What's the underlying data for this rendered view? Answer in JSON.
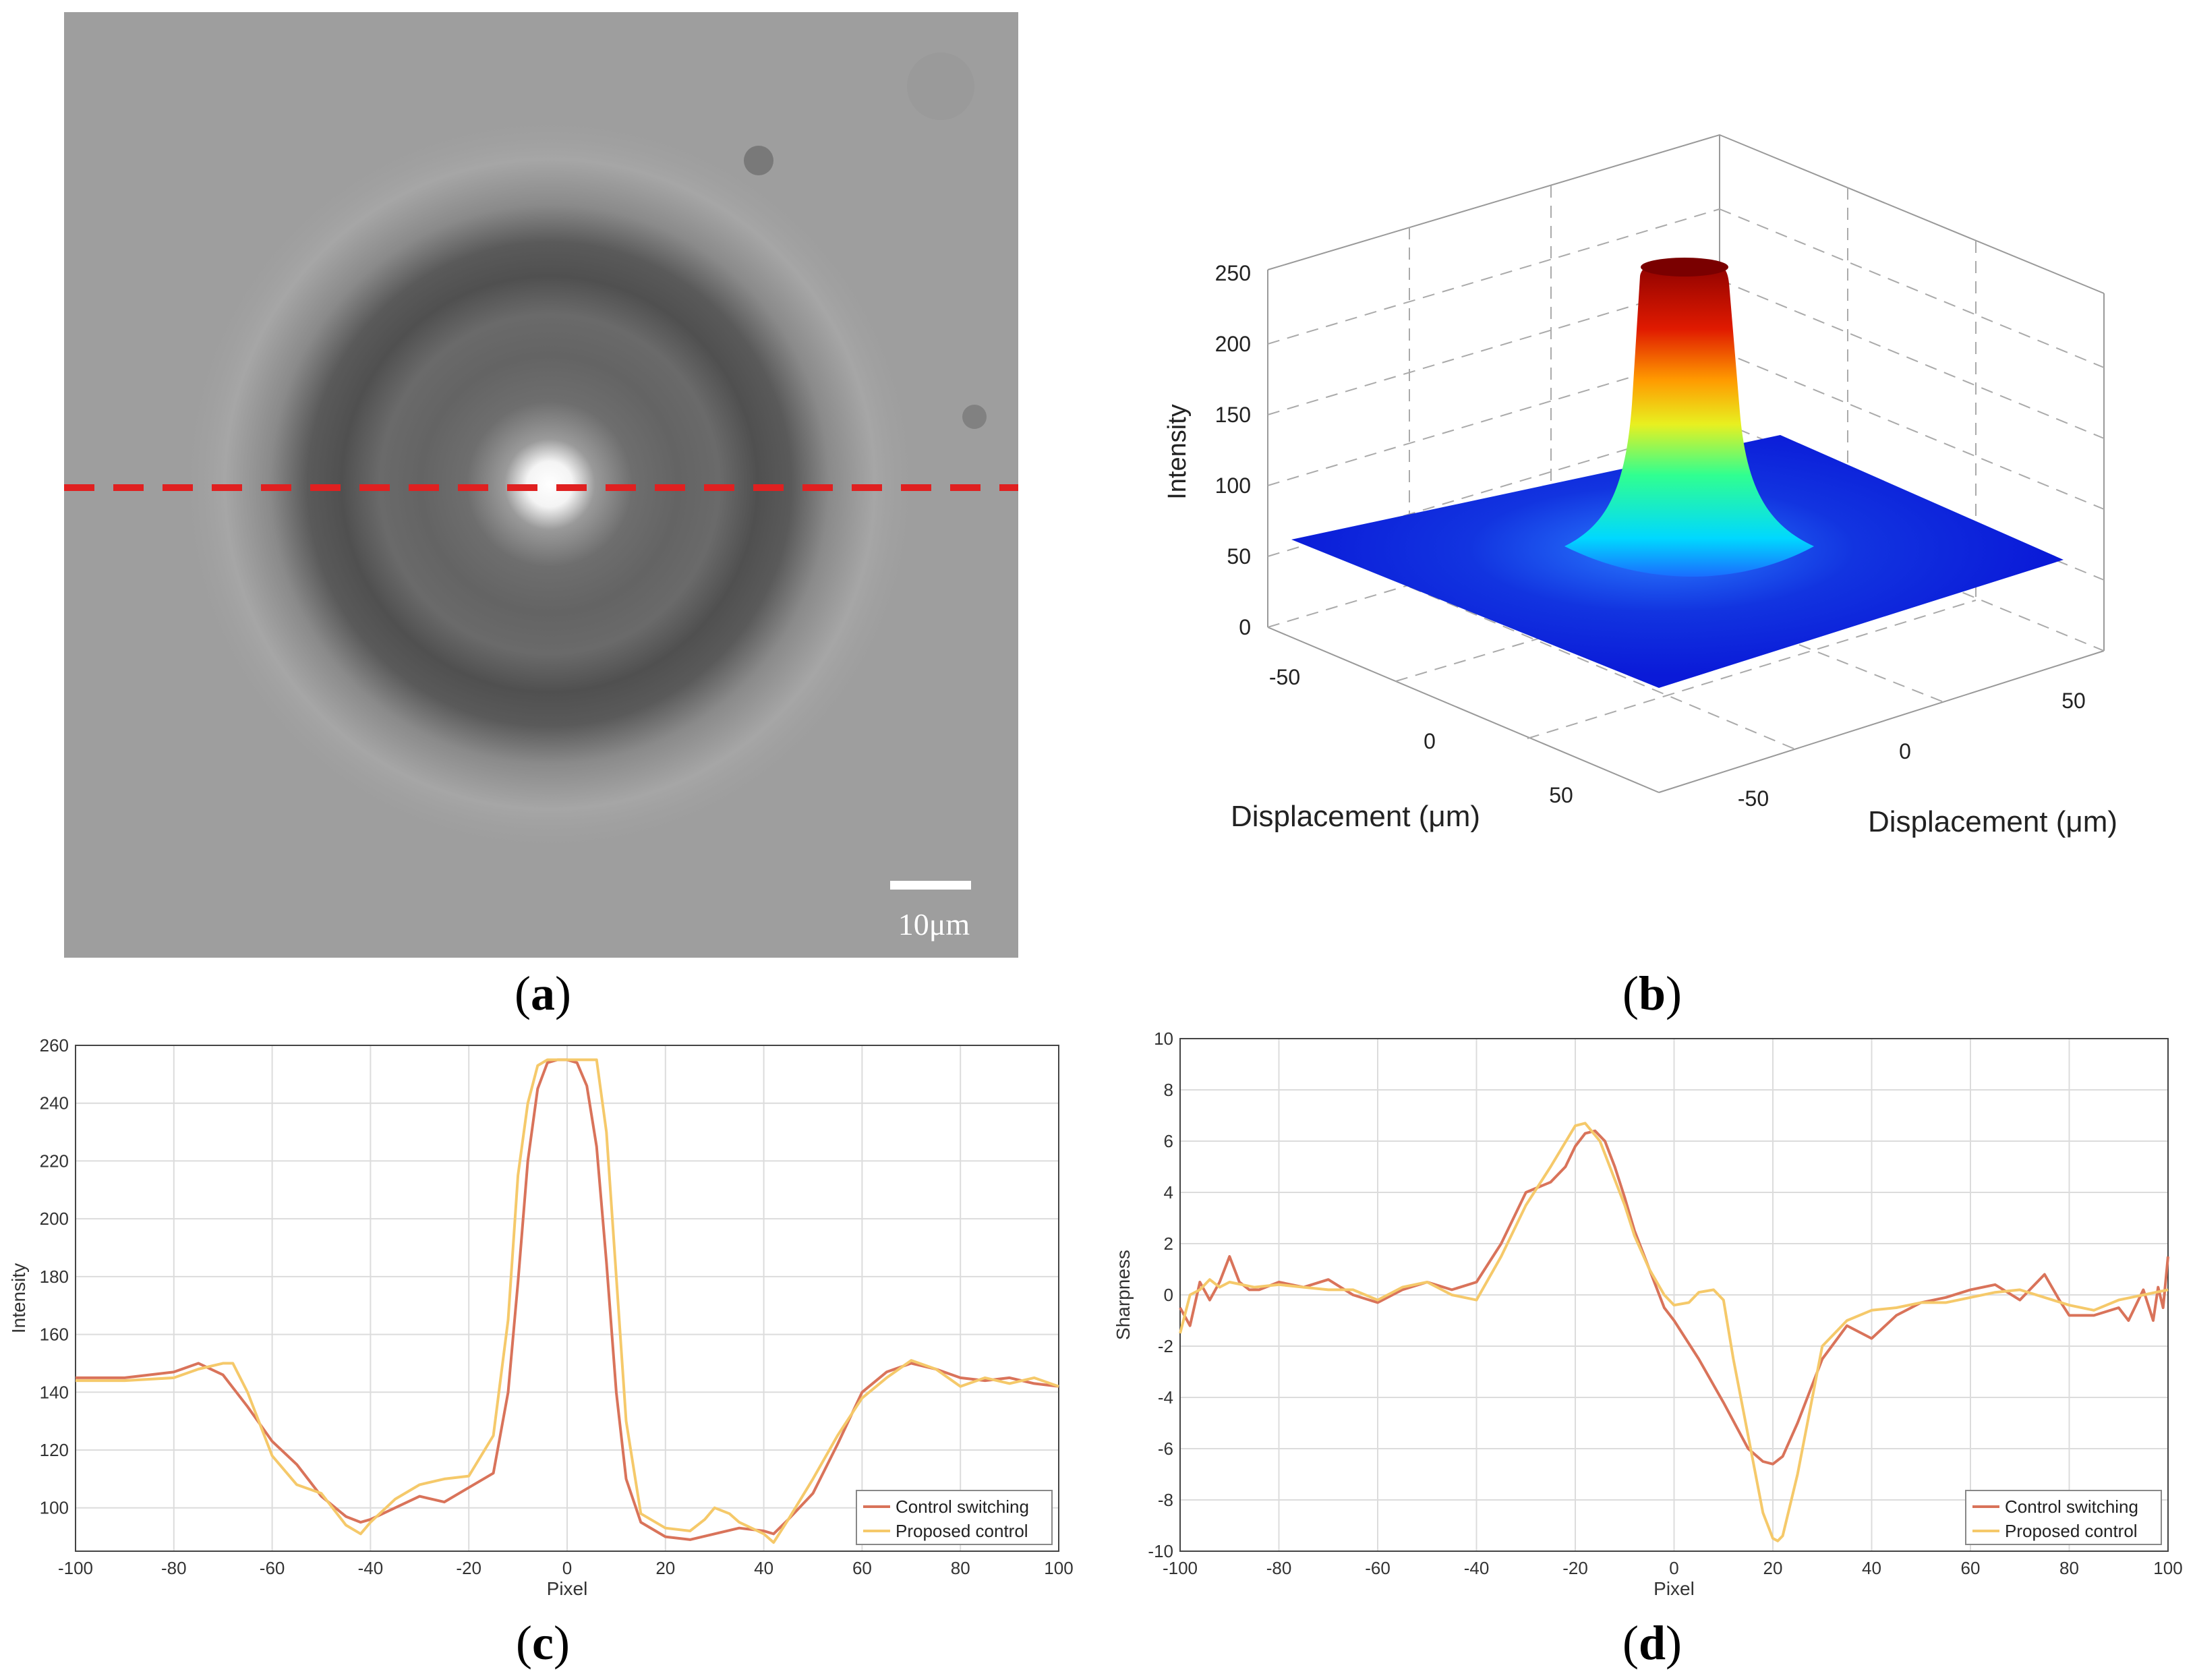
{
  "panels": {
    "a": {
      "caption_letter": "a",
      "scale_bar_label": "10μm",
      "line_color": "#e02020"
    },
    "b": {
      "caption_letter": "b",
      "zlabel": "Intensity",
      "xlabel": "Displacement (μm)",
      "ylabel": "Displacement (μm)",
      "zticks": [
        "0",
        "50",
        "100",
        "150",
        "200",
        "250"
      ],
      "xticks": [
        "-50",
        "0",
        "50"
      ],
      "yticks": [
        "-50",
        "0",
        "50"
      ]
    },
    "c": {
      "caption_letter": "c"
    },
    "d": {
      "caption_letter": "d"
    }
  },
  "chart_data": [
    {
      "id": "c",
      "type": "line",
      "xlabel": "Pixel",
      "ylabel": "Intensity",
      "xlim": [
        -100,
        100
      ],
      "ylim": [
        85,
        260
      ],
      "xticks": [
        -100,
        -80,
        -60,
        -40,
        -20,
        0,
        20,
        40,
        60,
        80,
        100
      ],
      "yticks": [
        100,
        120,
        140,
        160,
        180,
        200,
        220,
        240,
        260
      ],
      "grid": true,
      "legend_position": "bottom-right",
      "series": [
        {
          "name": "Control switching",
          "color": "#d9735a",
          "x": [
            -100,
            -90,
            -80,
            -75,
            -70,
            -65,
            -60,
            -55,
            -50,
            -45,
            -42,
            -40,
            -35,
            -30,
            -25,
            -20,
            -15,
            -12,
            -10,
            -8,
            -6,
            -4,
            -2,
            0,
            2,
            4,
            6,
            8,
            10,
            12,
            15,
            20,
            25,
            30,
            35,
            40,
            42,
            45,
            50,
            55,
            60,
            65,
            70,
            75,
            80,
            85,
            90,
            95,
            100
          ],
          "values": [
            145,
            145,
            147,
            150,
            146,
            135,
            123,
            115,
            104,
            97,
            95,
            96,
            100,
            104,
            102,
            107,
            112,
            140,
            178,
            220,
            245,
            254,
            255,
            255,
            254,
            246,
            225,
            185,
            140,
            110,
            95,
            90,
            89,
            91,
            93,
            92,
            91,
            96,
            105,
            122,
            140,
            147,
            150,
            148,
            145,
            144,
            145,
            143,
            142
          ]
        },
        {
          "name": "Proposed control",
          "color": "#f5c96a",
          "x": [
            -100,
            -90,
            -80,
            -75,
            -70,
            -68,
            -65,
            -60,
            -55,
            -50,
            -45,
            -42,
            -40,
            -35,
            -30,
            -25,
            -20,
            -15,
            -12,
            -10,
            -8,
            -6,
            -4,
            -2,
            0,
            2,
            4,
            6,
            8,
            10,
            12,
            15,
            20,
            25,
            28,
            30,
            33,
            35,
            40,
            42,
            45,
            50,
            55,
            60,
            65,
            70,
            75,
            80,
            85,
            90,
            95,
            100
          ],
          "values": [
            144,
            144,
            145,
            148,
            150,
            150,
            140,
            118,
            108,
            105,
            94,
            91,
            95,
            103,
            108,
            110,
            111,
            125,
            165,
            215,
            240,
            253,
            255,
            255,
            255,
            255,
            255,
            255,
            230,
            180,
            130,
            98,
            93,
            92,
            96,
            100,
            98,
            95,
            91,
            88,
            96,
            110,
            125,
            138,
            145,
            151,
            148,
            142,
            145,
            143,
            145,
            142
          ]
        }
      ]
    },
    {
      "id": "d",
      "type": "line",
      "xlabel": "Pixel",
      "ylabel": "Sharpness",
      "xlim": [
        -100,
        100
      ],
      "ylim": [
        -10,
        10
      ],
      "xticks": [
        -100,
        -80,
        -60,
        -40,
        -20,
        0,
        20,
        40,
        60,
        80,
        100
      ],
      "yticks": [
        -10,
        -8,
        -6,
        -4,
        -2,
        0,
        2,
        4,
        6,
        8,
        10
      ],
      "grid": true,
      "legend_position": "bottom-right",
      "series": [
        {
          "name": "Control switching",
          "color": "#d9735a",
          "x": [
            -100,
            -98,
            -96,
            -94,
            -92,
            -90,
            -88,
            -86,
            -84,
            -80,
            -75,
            -70,
            -65,
            -60,
            -55,
            -50,
            -45,
            -40,
            -35,
            -30,
            -25,
            -22,
            -20,
            -18,
            -16,
            -14,
            -12,
            -10,
            -8,
            -5,
            -2,
            0,
            5,
            10,
            15,
            18,
            20,
            22,
            25,
            30,
            35,
            40,
            45,
            50,
            55,
            60,
            65,
            70,
            72,
            75,
            78,
            80,
            85,
            90,
            92,
            95,
            97,
            98,
            99,
            100
          ],
          "values": [
            -0.5,
            -1.2,
            0.5,
            -0.2,
            0.5,
            1.5,
            0.5,
            0.2,
            0.2,
            0.5,
            0.3,
            0.6,
            0,
            -0.3,
            0.2,
            0.5,
            0.2,
            0.5,
            2,
            4,
            4.4,
            5,
            5.8,
            6.3,
            6.4,
            6,
            5,
            3.8,
            2.5,
            1,
            -0.5,
            -1,
            -2.5,
            -4.2,
            -6,
            -6.5,
            -6.6,
            -6.3,
            -5,
            -2.5,
            -1.2,
            -1.7,
            -0.8,
            -0.3,
            -0.1,
            0.2,
            0.4,
            -0.2,
            0.2,
            0.8,
            -0.2,
            -0.8,
            -0.8,
            -0.5,
            -1,
            0.2,
            -1,
            0.3,
            -0.5,
            1.5
          ]
        },
        {
          "name": "Proposed control",
          "color": "#f5c96a",
          "x": [
            -100,
            -98,
            -96,
            -94,
            -92,
            -90,
            -85,
            -80,
            -75,
            -70,
            -65,
            -60,
            -55,
            -50,
            -45,
            -40,
            -35,
            -30,
            -25,
            -20,
            -18,
            -15,
            -12,
            -10,
            -8,
            -5,
            -2,
            0,
            3,
            5,
            8,
            10,
            12,
            15,
            18,
            20,
            21,
            22,
            25,
            28,
            30,
            35,
            40,
            45,
            50,
            55,
            60,
            65,
            70,
            75,
            80,
            85,
            90,
            95,
            100
          ],
          "values": [
            -1.5,
            0,
            0.2,
            0.6,
            0.3,
            0.5,
            0.3,
            0.4,
            0.3,
            0.2,
            0.2,
            -0.2,
            0.3,
            0.5,
            0,
            -0.2,
            1.5,
            3.5,
            5,
            6.6,
            6.7,
            6,
            4.5,
            3.5,
            2.3,
            1,
            0,
            -0.4,
            -0.3,
            0.1,
            0.2,
            -0.2,
            -2.5,
            -5.5,
            -8.5,
            -9.5,
            -9.6,
            -9.4,
            -7,
            -4,
            -2,
            -1,
            -0.6,
            -0.5,
            -0.3,
            -0.3,
            -0.1,
            0.1,
            0.2,
            -0.1,
            -0.4,
            -0.6,
            -0.2,
            0,
            0.2
          ]
        }
      ]
    }
  ]
}
